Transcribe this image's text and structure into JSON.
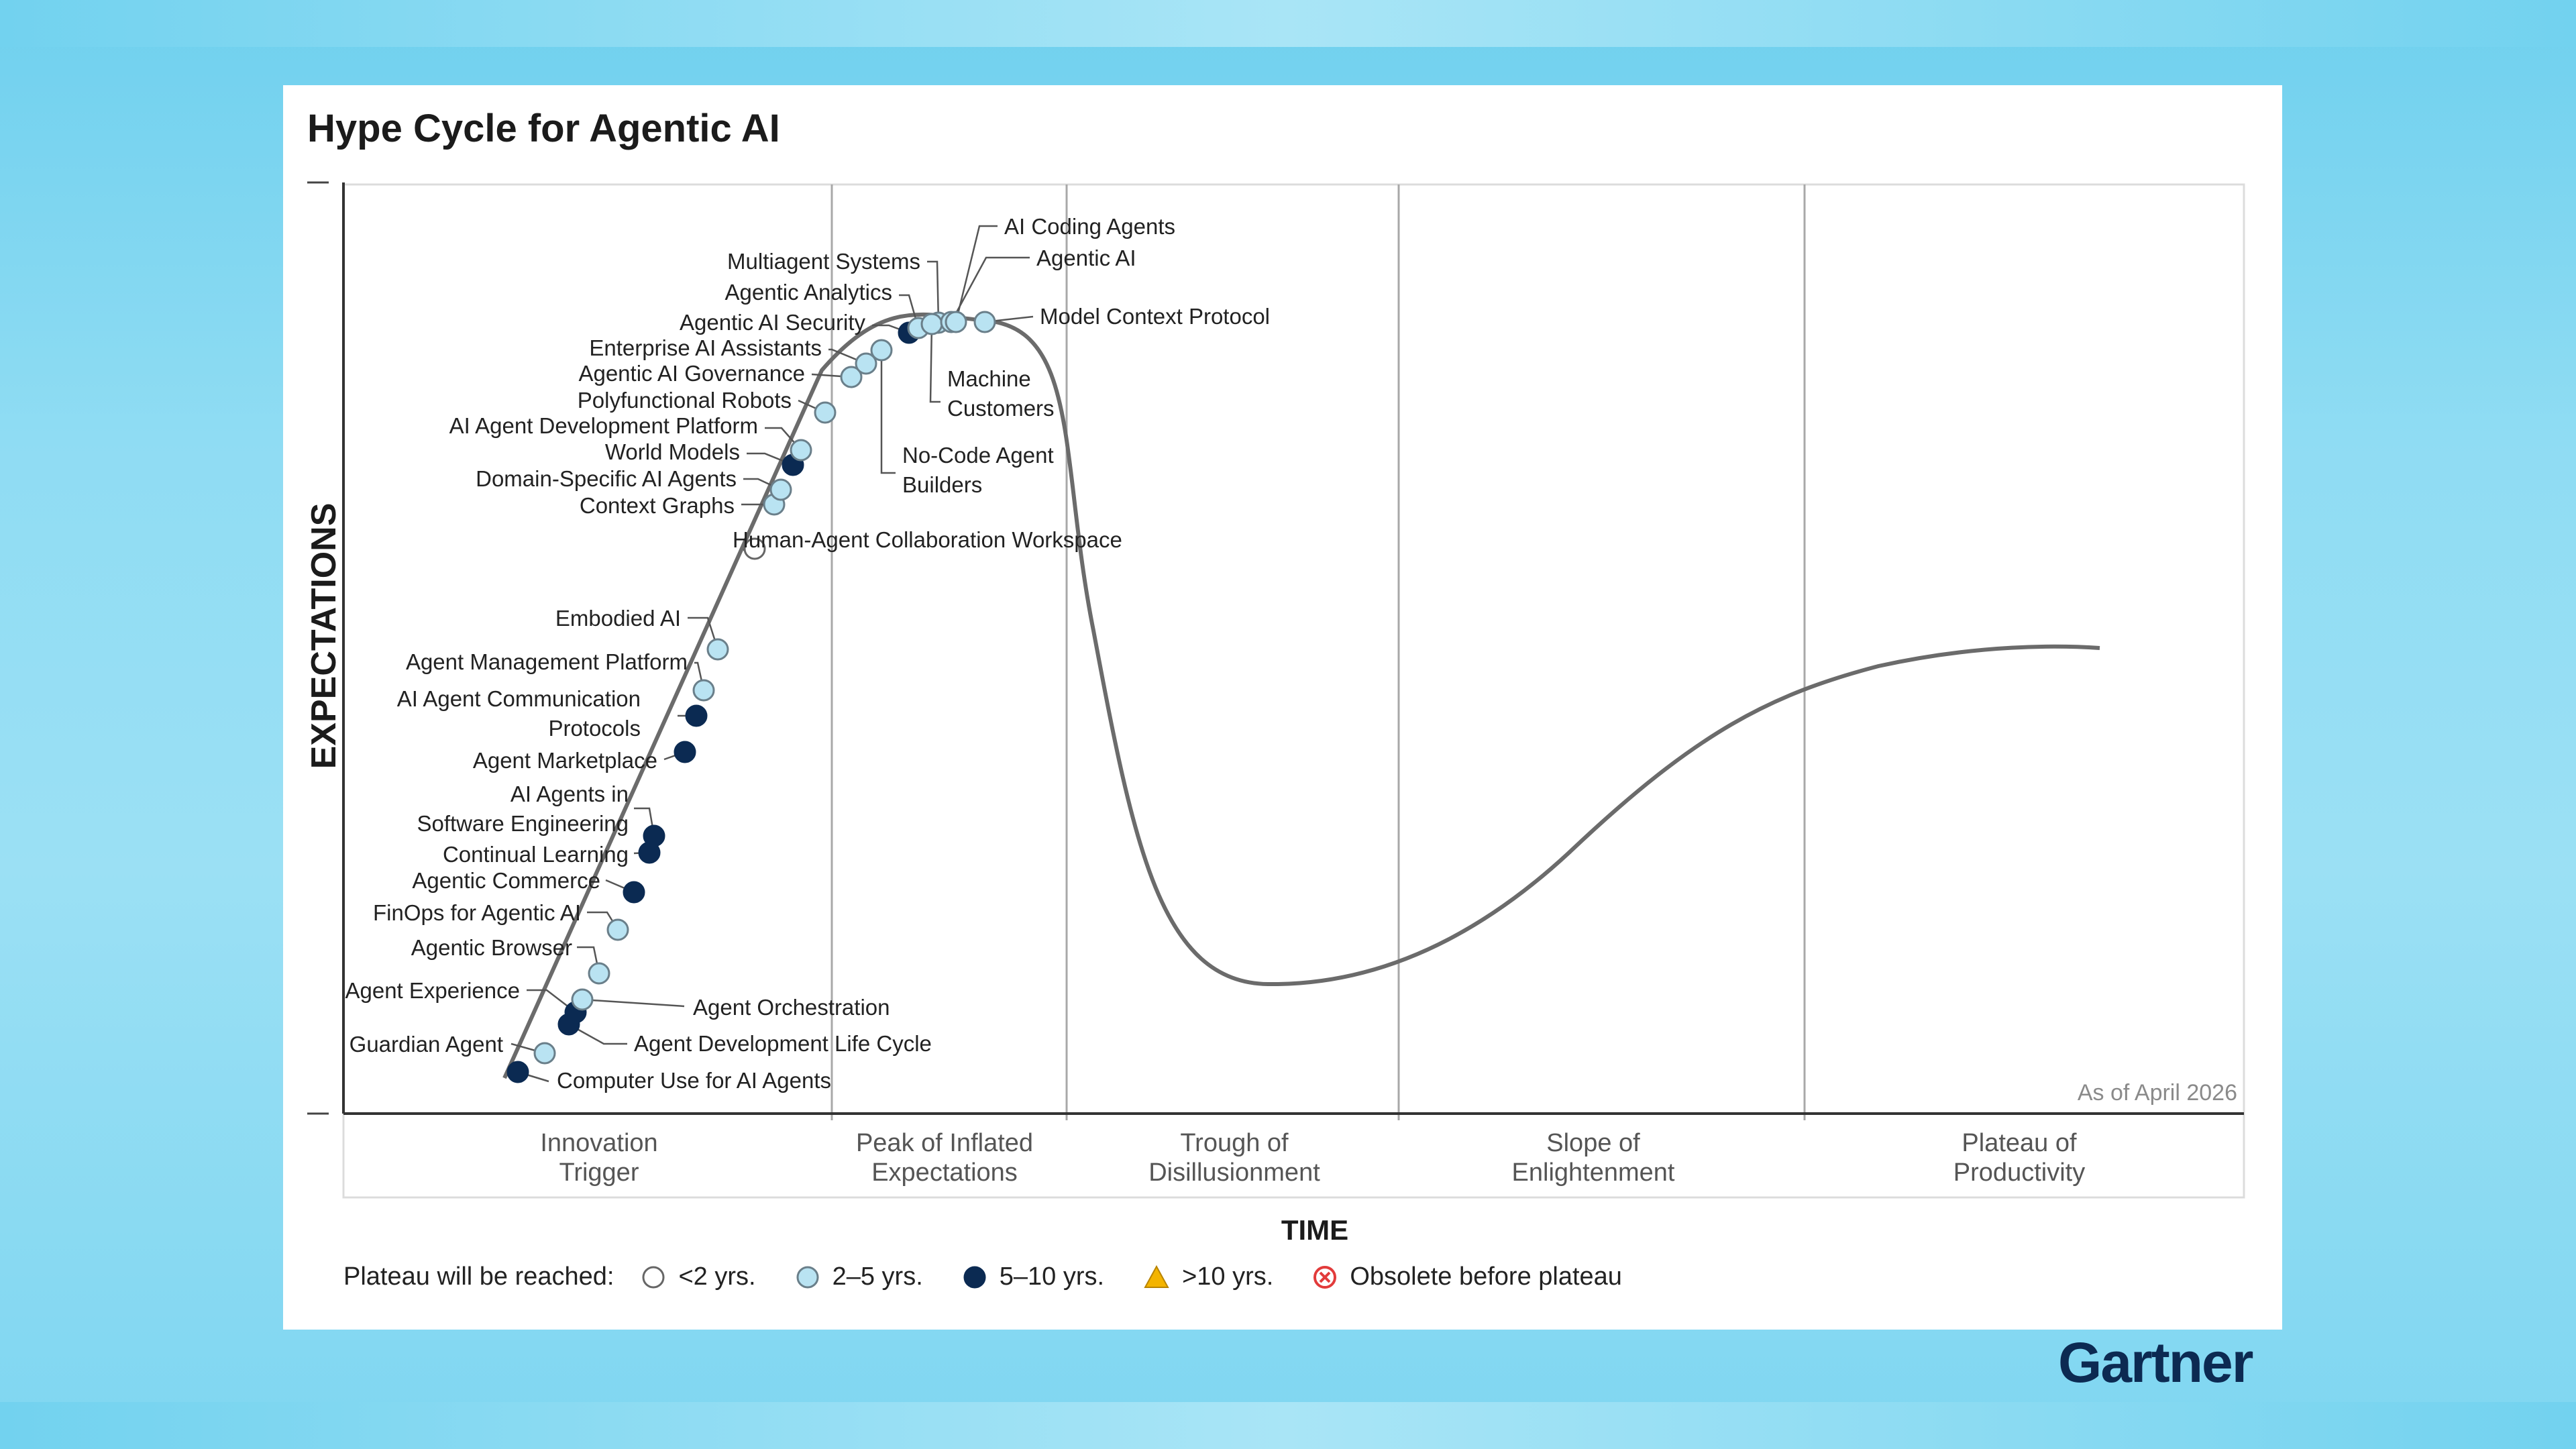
{
  "title": "Hype Cycle for Agentic AI",
  "as_of": "As of April 2026",
  "brand": "Gartner",
  "colors": {
    "lt2": "#ffffff",
    "2to5": "#b9e3f2",
    "5to10": "#0b2a52",
    "gt10": "#f4b400",
    "obsolete": "#e23b3b",
    "curve": "#6b6b6b"
  },
  "legend": {
    "lead": "Plateau will be reached:",
    "items": [
      {
        "key": "lt2",
        "label": "<2 yrs.",
        "shape": "circle-white"
      },
      {
        "key": "2to5",
        "label": "2–5 yrs.",
        "shape": "circle-light"
      },
      {
        "key": "5to10",
        "label": "5–10 yrs.",
        "shape": "circle-dark"
      },
      {
        "key": "gt10",
        "label": ">10 yrs.",
        "shape": "triangle-yellow"
      },
      {
        "key": "obsolete",
        "label": "Obsolete before plateau",
        "shape": "x-circle-red"
      }
    ]
  },
  "chart_data": {
    "type": "scatter",
    "title": "Hype Cycle for Agentic AI",
    "xlabel": "TIME",
    "ylabel": "EXPECTATIONS",
    "phases": [
      {
        "line1": "Innovation",
        "line2": "Trigger"
      },
      {
        "line1": "Peak of Inflated",
        "line2": "Expectations"
      },
      {
        "line1": "Trough of",
        "line2": "Disillusionment"
      },
      {
        "line1": "Slope of",
        "line2": "Enlightenment"
      },
      {
        "line1": "Plateau of",
        "line2": "Productivity"
      }
    ],
    "series": [
      {
        "name": "<2 yrs.",
        "values": [
          "Human-Agent Collaboration Workspace"
        ]
      },
      {
        "name": "2–5 yrs.",
        "values": [
          "Guardian Agent",
          "Agent Orchestration",
          "Agentic Browser",
          "FinOps for Agentic AI",
          "Agent Management Platform",
          "Embodied AI",
          "Context Graphs",
          "Domain-Specific AI Agents",
          "AI Agent Development Platform",
          "Polyfunctional Robots",
          "Agentic AI Governance",
          "Enterprise AI Assistants",
          "No-Code Agent Builders",
          "Agentic Analytics",
          "Multiagent Systems",
          "Machine Customers",
          "Agentic AI",
          "AI Coding Agents",
          "Model Context Protocol"
        ]
      },
      {
        "name": "5–10 yrs.",
        "values": [
          "Computer Use for AI Agents",
          "Agent Development Life Cycle",
          "Agent Experience",
          "Agentic Commerce",
          "Continual Learning",
          "AI Agents in Software Engineering",
          "Agent Marketplace",
          "AI Agent Communication Protocols",
          "World Models",
          "Agentic AI Security"
        ]
      }
    ],
    "items": [
      {
        "name": "Computer Use for AI Agents",
        "cat": "5to10",
        "lines": [
          "Computer Use for AI Agents"
        ]
      },
      {
        "name": "Guardian Agent",
        "cat": "2to5",
        "lines": [
          "Guardian Agent"
        ]
      },
      {
        "name": "Agent Development Life Cycle",
        "cat": "5to10",
        "lines": [
          "Agent Development Life Cycle"
        ]
      },
      {
        "name": "Agent Experience",
        "cat": "5to10",
        "lines": [
          "Agent Experience"
        ]
      },
      {
        "name": "Agent Orchestration",
        "cat": "2to5",
        "lines": [
          "Agent Orchestration"
        ]
      },
      {
        "name": "Agentic Browser",
        "cat": "2to5",
        "lines": [
          "Agentic Browser"
        ]
      },
      {
        "name": "FinOps for Agentic AI",
        "cat": "2to5",
        "lines": [
          "FinOps for Agentic AI"
        ]
      },
      {
        "name": "Agentic Commerce",
        "cat": "5to10",
        "lines": [
          "Agentic Commerce"
        ]
      },
      {
        "name": "Continual Learning",
        "cat": "5to10",
        "lines": [
          "Continual Learning"
        ]
      },
      {
        "name": "AI Agents in Software Engineering",
        "cat": "5to10",
        "lines": [
          "AI Agents in",
          "Software Engineering"
        ]
      },
      {
        "name": "Agent Marketplace",
        "cat": "5to10",
        "lines": [
          "Agent Marketplace"
        ]
      },
      {
        "name": "AI Agent Communication Protocols",
        "cat": "5to10",
        "lines": [
          "AI Agent Communication",
          "Protocols"
        ]
      },
      {
        "name": "Agent Management Platform",
        "cat": "2to5",
        "lines": [
          "Agent Management Platform"
        ]
      },
      {
        "name": "Embodied AI",
        "cat": "2to5",
        "lines": [
          "Embodied AI"
        ]
      },
      {
        "name": "Human-Agent Collaboration Workspace",
        "cat": "lt2",
        "lines": [
          "Human-Agent Collaboration Workspace"
        ]
      },
      {
        "name": "Context Graphs",
        "cat": "2to5",
        "lines": [
          "Context Graphs"
        ]
      },
      {
        "name": "Domain-Specific AI Agents",
        "cat": "2to5",
        "lines": [
          "Domain-Specific AI Agents"
        ]
      },
      {
        "name": "World Models",
        "cat": "5to10",
        "lines": [
          "World Models"
        ]
      },
      {
        "name": "AI Agent Development Platform",
        "cat": "2to5",
        "lines": [
          "AI Agent Development Platform"
        ]
      },
      {
        "name": "Polyfunctional Robots",
        "cat": "2to5",
        "lines": [
          "Polyfunctional Robots"
        ]
      },
      {
        "name": "Agentic AI Governance",
        "cat": "2to5",
        "lines": [
          "Agentic AI Governance"
        ]
      },
      {
        "name": "Enterprise AI Assistants",
        "cat": "2to5",
        "lines": [
          "Enterprise AI Assistants"
        ]
      },
      {
        "name": "No-Code Agent Builders",
        "cat": "2to5",
        "lines": [
          "No-Code Agent",
          "Builders"
        ]
      },
      {
        "name": "Agentic AI Security",
        "cat": "5to10",
        "lines": [
          "Agentic AI Security"
        ]
      },
      {
        "name": "Agentic Analytics",
        "cat": "2to5",
        "lines": [
          "Agentic Analytics"
        ]
      },
      {
        "name": "Multiagent Systems",
        "cat": "2to5",
        "lines": [
          "Multiagent Systems"
        ]
      },
      {
        "name": "Machine Customers",
        "cat": "2to5",
        "lines": [
          "Machine",
          "Customers"
        ]
      },
      {
        "name": "Agentic AI",
        "cat": "2to5",
        "lines": [
          "Agentic AI"
        ]
      },
      {
        "name": "AI Coding Agents",
        "cat": "2to5",
        "lines": [
          "AI Coding Agents"
        ]
      },
      {
        "name": "Model Context Protocol",
        "cat": "2to5",
        "lines": [
          "Model Context Protocol"
        ]
      }
    ]
  }
}
